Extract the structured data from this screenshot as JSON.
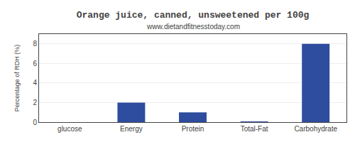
{
  "chart_data": {
    "type": "bar",
    "title": "Orange juice, canned, unsweetened per 100g",
    "subtitle": "www.dietandfitnesstoday.com",
    "ylabel": "Percentage of RDH (%)",
    "categories": [
      "glucose",
      "Energy",
      "Protein",
      "Total-Fat",
      "Carbohydrate"
    ],
    "values": [
      0.0,
      2.0,
      1.0,
      0.05,
      8.0
    ],
    "color": "#2e4d9e",
    "ylim": [
      0,
      9
    ],
    "yticks": [
      0,
      2,
      4,
      6,
      8
    ],
    "grid": true
  }
}
